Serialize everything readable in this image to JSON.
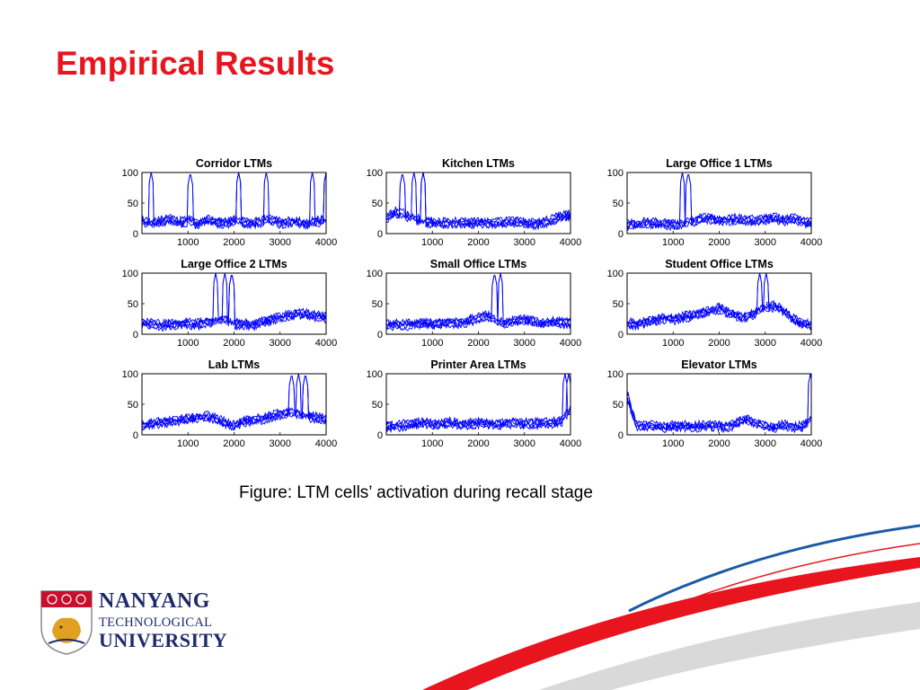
{
  "slide": {
    "title": "Empirical Results",
    "caption": "Figure: LTM cells’ activation during recall stage"
  },
  "logo": {
    "line1": "NANYANG",
    "line2": "TECHNOLOGICAL",
    "line3": "UNIVERSITY",
    "primary_color": "#1f2a6b",
    "accent_color": "#c8102e"
  },
  "colors": {
    "title": "#e8141e",
    "series": "#0000ff",
    "swoosh_red": "#e8141e",
    "swoosh_blue": "#1a5aa6",
    "swoosh_gray": "#d9d9d9"
  },
  "chart_data": [
    {
      "type": "line",
      "title": "Corridor LTMs",
      "xlim": [
        0,
        4000
      ],
      "ylim": [
        0,
        100
      ],
      "xticks": [
        1000,
        2000,
        3000,
        4000
      ],
      "yticks": [
        0,
        50,
        100
      ],
      "grid": false,
      "baseline": [
        22,
        15,
        20,
        24,
        18,
        20,
        16,
        22,
        19,
        17,
        21,
        18,
        16,
        20,
        22,
        17,
        19,
        18,
        16,
        20,
        21
      ],
      "spikes": [
        [
          200,
          100
        ],
        [
          1050,
          100
        ],
        [
          2100,
          100
        ],
        [
          2700,
          100
        ],
        [
          3700,
          100
        ],
        [
          4000,
          100
        ]
      ]
    },
    {
      "type": "line",
      "title": "Kitchen LTMs",
      "xlim": [
        0,
        4000
      ],
      "ylim": [
        0,
        100
      ],
      "xticks": [
        1000,
        2000,
        3000,
        4000
      ],
      "yticks": [
        0,
        50,
        100
      ],
      "grid": false,
      "baseline": [
        25,
        35,
        30,
        24,
        20,
        18,
        17,
        18,
        17,
        16,
        17,
        18,
        17,
        18,
        19,
        17,
        16,
        18,
        22,
        28,
        30
      ],
      "spikes": [
        [
          350,
          100
        ],
        [
          600,
          100
        ],
        [
          800,
          100
        ]
      ]
    },
    {
      "type": "line",
      "title": "Large Office 1 LTMs",
      "xlim": [
        0,
        4000
      ],
      "ylim": [
        0,
        100
      ],
      "xticks": [
        1000,
        2000,
        3000,
        4000
      ],
      "yticks": [
        0,
        50,
        100
      ],
      "grid": false,
      "baseline": [
        15,
        14,
        18,
        17,
        16,
        15,
        15,
        20,
        24,
        25,
        20,
        22,
        24,
        22,
        20,
        23,
        25,
        22,
        24,
        21,
        16
      ],
      "spikes": [
        [
          1200,
          100
        ],
        [
          1330,
          100
        ]
      ]
    },
    {
      "type": "line",
      "title": "Large Office 2 LTMs",
      "xlim": [
        0,
        4000
      ],
      "ylim": [
        0,
        100
      ],
      "xticks": [
        1000,
        2000,
        3000,
        4000
      ],
      "yticks": [
        0,
        50,
        100
      ],
      "grid": false,
      "baseline": [
        16,
        18,
        14,
        15,
        18,
        17,
        16,
        20,
        22,
        24,
        17,
        16,
        15,
        20,
        24,
        28,
        30,
        34,
        32,
        30,
        27
      ],
      "spikes": [
        [
          1600,
          100
        ],
        [
          1800,
          100
        ],
        [
          1950,
          100
        ]
      ]
    },
    {
      "type": "line",
      "title": "Small Office LTMs",
      "xlim": [
        0,
        4000
      ],
      "ylim": [
        0,
        100
      ],
      "xticks": [
        1000,
        2000,
        3000,
        4000
      ],
      "yticks": [
        0,
        50,
        100
      ],
      "grid": false,
      "baseline": [
        14,
        16,
        15,
        17,
        18,
        16,
        17,
        19,
        18,
        22,
        26,
        30,
        20,
        18,
        22,
        24,
        20,
        18,
        20,
        19,
        18
      ],
      "spikes": [
        [
          2350,
          100
        ],
        [
          2480,
          100
        ]
      ]
    },
    {
      "type": "line",
      "title": "Student Office LTMs",
      "xlim": [
        0,
        4000
      ],
      "ylim": [
        0,
        100
      ],
      "xticks": [
        1000,
        2000,
        3000,
        4000
      ],
      "yticks": [
        0,
        50,
        100
      ],
      "grid": false,
      "baseline": [
        18,
        15,
        20,
        22,
        26,
        24,
        28,
        30,
        34,
        38,
        42,
        36,
        30,
        28,
        36,
        42,
        46,
        38,
        25,
        18,
        14
      ],
      "spikes": [
        [
          2880,
          100
        ],
        [
          3020,
          100
        ]
      ]
    },
    {
      "type": "line",
      "title": "Lab LTMs",
      "xlim": [
        0,
        4000
      ],
      "ylim": [
        0,
        100
      ],
      "xticks": [
        1000,
        2000,
        3000,
        4000
      ],
      "yticks": [
        0,
        50,
        100
      ],
      "grid": false,
      "baseline": [
        15,
        18,
        20,
        22,
        24,
        26,
        28,
        30,
        26,
        20,
        14,
        22,
        24,
        26,
        30,
        34,
        36,
        32,
        30,
        28,
        25
      ],
      "spikes": [
        [
          3250,
          100
        ],
        [
          3400,
          100
        ],
        [
          3550,
          100
        ]
      ]
    },
    {
      "type": "line",
      "title": "Printer Area LTMs",
      "xlim": [
        0,
        4000
      ],
      "ylim": [
        0,
        100
      ],
      "xticks": [
        1000,
        2000,
        3000,
        4000
      ],
      "yticks": [
        0,
        50,
        100
      ],
      "grid": false,
      "baseline": [
        15,
        14,
        16,
        18,
        20,
        17,
        18,
        20,
        17,
        18,
        19,
        18,
        17,
        19,
        20,
        18,
        19,
        18,
        20,
        22,
        40
      ],
      "spikes": [
        [
          3880,
          100
        ],
        [
          3960,
          100
        ]
      ]
    },
    {
      "type": "line",
      "title": "Elevator LTMs",
      "xlim": [
        0,
        4000
      ],
      "ylim": [
        0,
        100
      ],
      "xticks": [
        1000,
        2000,
        3000,
        4000
      ],
      "yticks": [
        0,
        50,
        100
      ],
      "grid": false,
      "baseline": [
        60,
        16,
        14,
        15,
        13,
        14,
        15,
        13,
        14,
        15,
        14,
        13,
        20,
        25,
        18,
        14,
        13,
        15,
        14,
        13,
        25
      ],
      "spikes": [
        [
          20,
          70
        ],
        [
          3980,
          100
        ]
      ]
    }
  ]
}
